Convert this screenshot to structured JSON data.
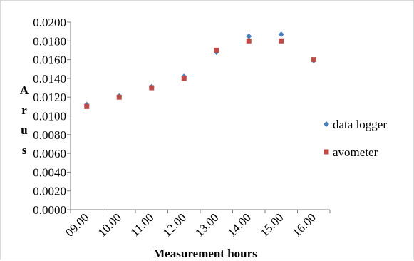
{
  "chart_data": {
    "type": "scatter",
    "title": "",
    "xlabel": "Measurement hours",
    "ylabel_letters": [
      "A",
      "r",
      "u",
      "s"
    ],
    "x_categories": [
      "09.00",
      "10.00",
      "11.00",
      "12.00",
      "13.00",
      "14.00",
      "15.00",
      "16.00"
    ],
    "ylim": [
      0,
      0.02
    ],
    "y_ticks": [
      "0.0000",
      "0.0020",
      "0.0040",
      "0.0060",
      "0.0080",
      "0.0100",
      "0.0120",
      "0.0140",
      "0.0160",
      "0.0180",
      "0.0200"
    ],
    "grid": false,
    "legend_position": "right",
    "series": [
      {
        "name": "data logger",
        "marker": "diamond",
        "color": "#4a7ebb",
        "values": [
          0.0112,
          0.0121,
          0.0131,
          0.0142,
          0.0168,
          0.0185,
          0.0187,
          0.0159
        ]
      },
      {
        "name": "avometer",
        "marker": "square",
        "color": "#be4b48",
        "values": [
          0.011,
          0.012,
          0.013,
          0.014,
          0.017,
          0.018,
          0.018,
          0.016
        ]
      }
    ]
  }
}
